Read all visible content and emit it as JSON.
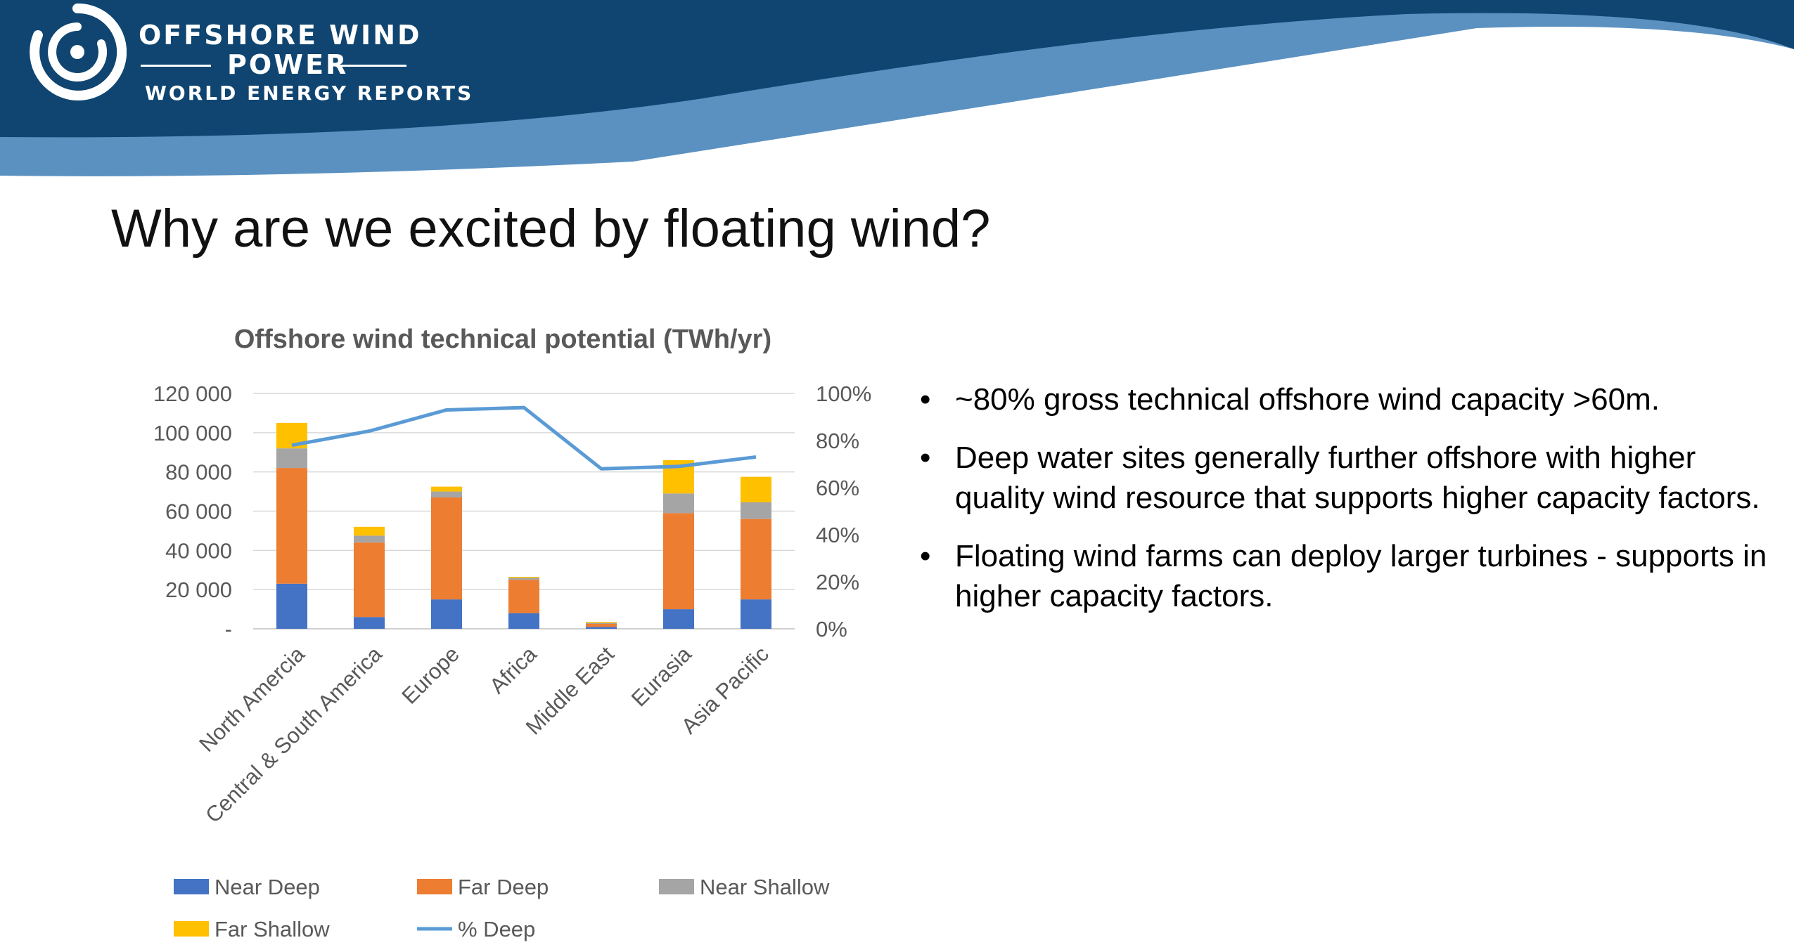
{
  "logo": {
    "line1": "OFFSHORE WIND",
    "line2": "POWER",
    "line3": "WORLD ENERGY REPORTS"
  },
  "colors": {
    "banner_dark": "#0f4570",
    "banner_light": "#5b91c1",
    "near_deep": "#4472c4",
    "far_deep": "#ed7d31",
    "near_shallow": "#a5a5a5",
    "far_shallow": "#ffc000",
    "pct_deep": "#5b9bd5"
  },
  "slide": {
    "title": "Why are we excited by floating wind?"
  },
  "bullets": [
    "~80% gross technical offshore wind capacity >60m.",
    "Deep water sites generally further offshore with higher quality wind resource that supports higher capacity factors.",
    "Floating wind farms can deploy larger turbines - supports in higher capacity factors."
  ],
  "chart_data": {
    "type": "bar",
    "stacked": true,
    "title": "Offshore wind technical potential (TWh/yr)",
    "categories": [
      "North Amercia",
      "Central & South America",
      "Europe",
      "Africa",
      "Middle East",
      "Eurasia",
      "Asia Pacific"
    ],
    "y_ticks": [
      "-",
      "20 000",
      "40 000",
      "60 000",
      "80 000",
      "100 000",
      "120 000"
    ],
    "ylim": [
      0,
      120000
    ],
    "y2_ticks": [
      "0%",
      "20%",
      "40%",
      "60%",
      "80%",
      "100%"
    ],
    "y2lim": [
      0,
      1
    ],
    "series": [
      {
        "name": "Near Deep",
        "type": "bar",
        "color": "#4472c4",
        "values": [
          23000,
          6000,
          15000,
          8000,
          1000,
          10000,
          15000
        ]
      },
      {
        "name": "Far Deep",
        "type": "bar",
        "color": "#ed7d31",
        "values": [
          59000,
          38000,
          52000,
          17000,
          1500,
          49000,
          41000
        ]
      },
      {
        "name": "Near Shallow",
        "type": "bar",
        "color": "#a5a5a5",
        "values": [
          10000,
          3500,
          3000,
          1000,
          500,
          10000,
          8500
        ]
      },
      {
        "name": "Far Shallow",
        "type": "bar",
        "color": "#ffc000",
        "values": [
          13000,
          4500,
          2500,
          500,
          500,
          17000,
          13000
        ]
      },
      {
        "name": "% Deep",
        "type": "line",
        "axis": "secondary",
        "color": "#5b9bd5",
        "values": [
          0.78,
          0.84,
          0.93,
          0.94,
          0.68,
          0.69,
          0.73
        ]
      }
    ],
    "grid": true,
    "legend_position": "bottom"
  }
}
